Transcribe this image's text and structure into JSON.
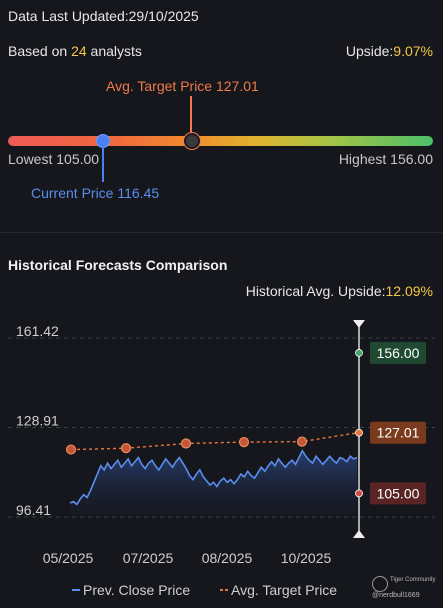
{
  "header": {
    "updated_label": "Data Last Updated:",
    "updated_date": "29/10/2025",
    "based_prefix": "Based on",
    "analyst_count": "24",
    "based_suffix": "analysts",
    "upside_label": "Upside:",
    "upside_value": "9.07%"
  },
  "range": {
    "avg_target_label": "Avg. Target Price 127.01",
    "lowest_label": "Lowest 105.00",
    "highest_label": "Highest 156.00",
    "current_label": "Current Price 116.45",
    "lowest": 105.0,
    "highest": 156.0,
    "current": 116.45,
    "avg_target": 127.01
  },
  "history": {
    "title": "Historical Forecasts Comparison",
    "upside_label": "Historical Avg. Upside:",
    "upside_value": "12.09%"
  },
  "chart_data": {
    "type": "line",
    "ylim": [
      96.41,
      161.42
    ],
    "y_ticks": [
      "161.42",
      "128.91",
      "96.41"
    ],
    "x_ticks": [
      "05/2025",
      "07/2025",
      "08/2025",
      "10/2025"
    ],
    "series": [
      {
        "name": "Prev. Close Price",
        "color": "#5b8def",
        "values": [
          101.5,
          102.0,
          101.0,
          103.0,
          104.5,
          103.5,
          106.0,
          109.0,
          112.0,
          115.0,
          113.5,
          116.0,
          114.0,
          115.5,
          117.0,
          114.5,
          116.0,
          117.5,
          115.0,
          116.5,
          118.0,
          115.5,
          114.0,
          116.0,
          117.0,
          115.0,
          113.5,
          115.5,
          117.5,
          116.0,
          114.5,
          116.5,
          118.0,
          116.0,
          114.0,
          111.5,
          110.0,
          112.0,
          113.5,
          111.0,
          109.5,
          108.0,
          109.0,
          107.5,
          109.5,
          110.5,
          109.0,
          110.0,
          108.5,
          110.0,
          112.0,
          111.0,
          113.0,
          111.5,
          110.5,
          112.5,
          114.5,
          113.0,
          115.0,
          116.5,
          115.0,
          117.5,
          116.0,
          114.5,
          116.0,
          117.0,
          115.5,
          118.0,
          120.5,
          118.5,
          117.0,
          116.0,
          118.5,
          117.0,
          115.5,
          117.0,
          118.5,
          117.0,
          116.0,
          118.0,
          117.5,
          116.5,
          118.5,
          117.5,
          118.0
        ]
      },
      {
        "name": "Avg. Target Price",
        "color": "#e8763c",
        "values": [
          120.9,
          121.4,
          123.1,
          123.6,
          123.8,
          127.01
        ]
      }
    ],
    "end_markers": {
      "high": "156.00",
      "avg": "127.01",
      "low": "105.00",
      "high_value": 156.0,
      "avg_value": 127.01,
      "low_value": 105.0
    },
    "legend": [
      "Prev. Close Price",
      "Avg. Target Price"
    ]
  },
  "watermark": {
    "brand": "Tiger Community",
    "user": "@nerdbull1669"
  }
}
